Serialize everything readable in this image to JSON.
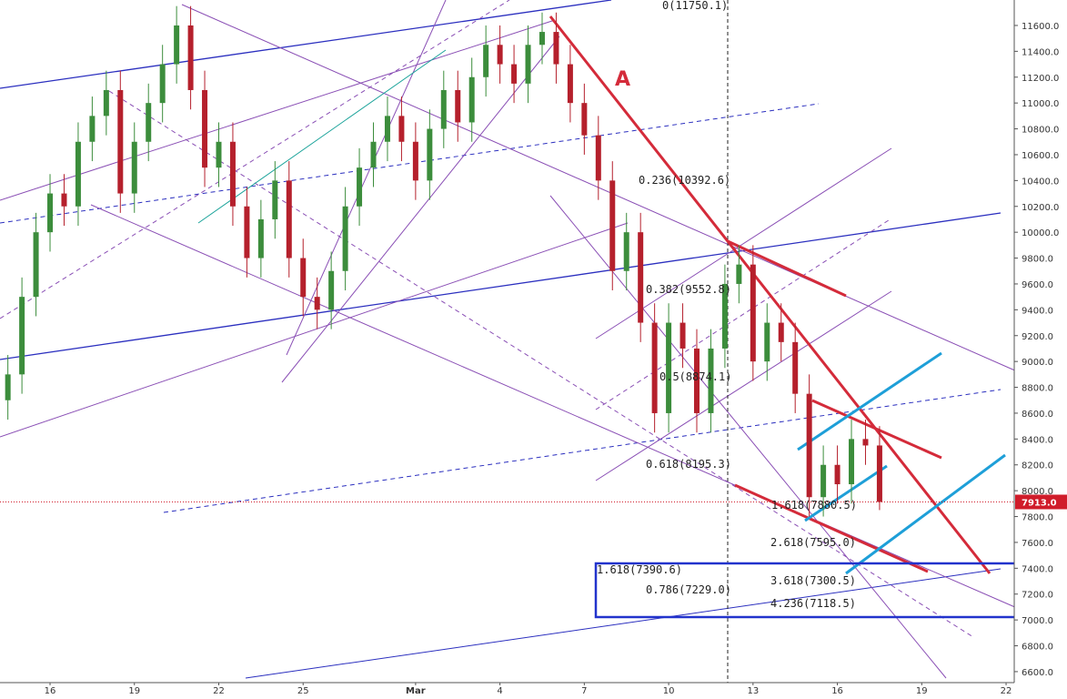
{
  "chart_data": {
    "type": "candlestick",
    "annotation": "A",
    "fib_labels": [
      "0(11750.1)",
      "0.236(10392.6)",
      "0.382(9552.8)",
      "0.5(8874.1)",
      "0.618(8195.3)",
      "1.618(7880.5)",
      "2.618(7595.0)",
      "3.618(7300.5)",
      "4.236(7118.5)",
      "1.618(7390.6)",
      "0.786(7229.0)"
    ],
    "last_price_label": "7913.0",
    "up_color": "#3c8d3c",
    "down_color": "#b5202c",
    "x": [
      -1.5,
      -1,
      -0.5,
      0,
      0.5,
      1,
      1.5,
      2,
      2.5,
      3,
      3.5,
      4,
      4.5,
      5,
      5.5,
      6,
      6.5,
      7,
      7.5,
      8,
      8.5,
      9,
      9.5,
      10,
      10.5,
      11,
      11.5,
      12,
      12.5,
      13,
      13.5,
      14,
      14.5,
      15,
      15.5,
      16,
      16.5,
      17,
      17.5,
      18,
      18.5,
      19,
      19.5,
      20,
      20.5,
      21,
      21.5,
      22,
      22.5,
      23,
      23.5,
      24,
      24.5,
      25,
      25.5,
      26,
      26.5,
      27,
      27.5,
      28,
      28.5,
      29,
      29.5
    ],
    "open": [
      8700,
      8900,
      9500,
      10000,
      10300,
      10200,
      10700,
      10900,
      11100,
      10300,
      10700,
      11000,
      11300,
      11600,
      11100,
      10500,
      10700,
      10200,
      9800,
      10100,
      10400,
      9800,
      9500,
      9400,
      9700,
      10200,
      10500,
      10700,
      10900,
      10700,
      10400,
      10800,
      11100,
      10850,
      11200,
      11450,
      11300,
      11150,
      11450,
      11550,
      11300,
      11000,
      10750,
      10400,
      9700,
      10000,
      9300,
      8600,
      9300,
      9100,
      8600,
      9100,
      9600,
      9750,
      9000,
      9300,
      9150,
      8750,
      7950,
      8200,
      8050,
      8400,
      8350
    ],
    "high": [
      9050,
      9650,
      10150,
      10450,
      10450,
      10850,
      11050,
      11250,
      11250,
      10850,
      11150,
      11450,
      11750,
      11750,
      11250,
      10850,
      10850,
      10350,
      10250,
      10550,
      10550,
      9950,
      9650,
      9850,
      10350,
      10650,
      10850,
      11050,
      11050,
      10850,
      10950,
      11250,
      11250,
      11350,
      11600,
      11600,
      11450,
      11600,
      11700,
      11700,
      11450,
      11150,
      10900,
      10550,
      10150,
      10150,
      9450,
      9450,
      9450,
      9250,
      9250,
      9750,
      9900,
      9900,
      9450,
      9450,
      9300,
      8900,
      8350,
      8350,
      8550,
      8550,
      8500
    ],
    "low": [
      8550,
      8750,
      9350,
      9850,
      10050,
      10050,
      10550,
      10750,
      10150,
      10150,
      10550,
      10850,
      11150,
      10950,
      10350,
      10350,
      10050,
      9650,
      9650,
      9950,
      9650,
      9350,
      9250,
      9250,
      9550,
      10050,
      10350,
      10550,
      10550,
      10250,
      10250,
      10650,
      10700,
      10700,
      11050,
      11150,
      11000,
      11000,
      11300,
      11150,
      10850,
      10600,
      10250,
      9550,
      9550,
      9150,
      8450,
      8450,
      8950,
      8450,
      8450,
      8950,
      9450,
      8850,
      8850,
      9000,
      8600,
      7800,
      7800,
      7900,
      7900,
      8200,
      7850
    ],
    "close": [
      8900,
      9500,
      10000,
      10300,
      10200,
      10700,
      10900,
      11100,
      10300,
      10700,
      11000,
      11300,
      11600,
      11100,
      10500,
      10700,
      10200,
      9800,
      10100,
      10400,
      9800,
      9500,
      9400,
      9700,
      10200,
      10500,
      10700,
      10900,
      10700,
      10400,
      10800,
      11100,
      10850,
      11200,
      11450,
      11300,
      11150,
      11450,
      11550,
      11300,
      11000,
      10750,
      10400,
      9700,
      10000,
      9300,
      8600,
      9300,
      9100,
      8600,
      9100,
      9600,
      9750,
      9000,
      9300,
      9150,
      8750,
      7950,
      8200,
      8050,
      8400,
      8350,
      7913
    ],
    "xlim": [
      -1.78,
      34.29
    ],
    "xticks": [
      {
        "value": 0,
        "label": "16"
      },
      {
        "value": 3,
        "label": "19"
      },
      {
        "value": 6,
        "label": "22"
      },
      {
        "value": 9,
        "label": "25"
      },
      {
        "value": 13,
        "label": "Mar"
      },
      {
        "value": 16,
        "label": "4"
      },
      {
        "value": 19,
        "label": "7"
      },
      {
        "value": 22,
        "label": "10"
      },
      {
        "value": 25,
        "label": "13"
      },
      {
        "value": 28,
        "label": "16"
      },
      {
        "value": 31,
        "label": "19"
      },
      {
        "value": 34,
        "label": "22"
      }
    ],
    "ylim": [
      6515,
      11797
    ],
    "yticks": [
      {
        "value": 6600,
        "label": "6600.0"
      },
      {
        "value": 6800,
        "label": "6800.0"
      },
      {
        "value": 7000,
        "label": "7000.0"
      },
      {
        "value": 7200,
        "label": "7200.0"
      },
      {
        "value": 7400,
        "label": "7400.0"
      },
      {
        "value": 7600,
        "label": "7600.0"
      },
      {
        "value": 7800,
        "label": "7800.0"
      },
      {
        "value": 8000,
        "label": "8000.0"
      },
      {
        "value": 8200,
        "label": "8200.0"
      },
      {
        "value": 8400,
        "label": "8400.0"
      },
      {
        "value": 8600,
        "label": "8600.0"
      },
      {
        "value": 8800,
        "label": "8800.0"
      },
      {
        "value": 9000,
        "label": "9000.0"
      },
      {
        "value": 9200,
        "label": "9200.0"
      },
      {
        "value": 9400,
        "label": "9400.0"
      },
      {
        "value": 9600,
        "label": "9600.0"
      },
      {
        "value": 9800,
        "label": "9800.0"
      },
      {
        "value": 10000,
        "label": "10000.0"
      },
      {
        "value": 10200,
        "label": "10200.0"
      },
      {
        "value": 10400,
        "label": "10400.0"
      },
      {
        "value": 10600,
        "label": "10600.0"
      },
      {
        "value": 10800,
        "label": "10800.0"
      },
      {
        "value": 11000,
        "label": "11000.0"
      },
      {
        "value": 11200,
        "label": "11200.0"
      },
      {
        "value": 11400,
        "label": "11400.0"
      },
      {
        "value": 11600,
        "label": "11600.0"
      }
    ]
  }
}
